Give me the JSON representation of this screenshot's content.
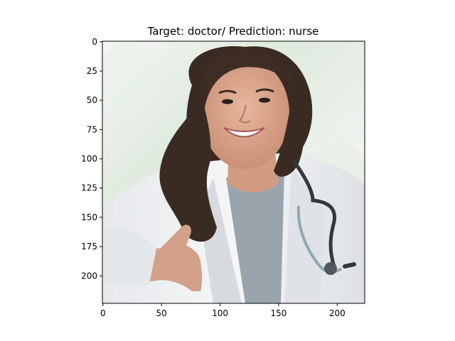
{
  "chart_data": {
    "type": "image",
    "title": "Target: doctor/ Prediction: nurse",
    "xlim": [
      -0.5,
      223.5
    ],
    "ylim": [
      223.5,
      -0.5
    ],
    "x_ticks": [
      0,
      50,
      100,
      150,
      200
    ],
    "y_ticks": [
      0,
      25,
      50,
      75,
      100,
      125,
      150,
      175,
      200
    ],
    "image_content": "smiling woman with long dark wavy hair wearing a white lab coat, grey top and stethoscope, extending right hand for a handshake"
  },
  "colors": {
    "background_blur": "#dfe9dd",
    "coat": "#eef0f2",
    "shirt": "#9aa4ad",
    "hair": "#3a2b22",
    "skin": "#d9a48b",
    "stethoscope": "#33383c"
  }
}
